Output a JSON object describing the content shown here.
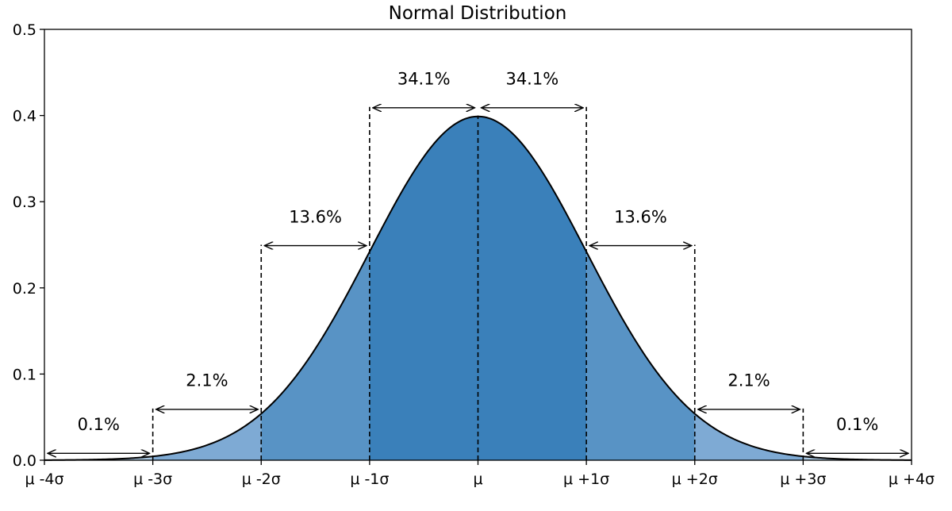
{
  "chart_data": {
    "type": "area",
    "title": "Normal Distribution",
    "xlabel": "",
    "ylabel": "",
    "xlim": [
      -4,
      4
    ],
    "ylim": [
      0,
      0.5
    ],
    "grid": false,
    "y_ticks": [
      {
        "value": 0.0,
        "label": "0.0"
      },
      {
        "value": 0.1,
        "label": "0.1"
      },
      {
        "value": 0.2,
        "label": "0.2"
      },
      {
        "value": 0.3,
        "label": "0.3"
      },
      {
        "value": 0.4,
        "label": "0.4"
      },
      {
        "value": 0.5,
        "label": "0.5"
      }
    ],
    "x_ticks": [
      {
        "value": -4,
        "label": "μ -4σ"
      },
      {
        "value": -3,
        "label": "μ -3σ"
      },
      {
        "value": -2,
        "label": "μ -2σ"
      },
      {
        "value": -1,
        "label": "μ -1σ"
      },
      {
        "value": 0,
        "label": "μ"
      },
      {
        "value": 1,
        "label": "μ +1σ"
      },
      {
        "value": 2,
        "label": "μ +2σ"
      },
      {
        "value": 3,
        "label": "μ +3σ"
      },
      {
        "value": 4,
        "label": "μ +4σ"
      }
    ],
    "curve": {
      "function": "standard normal pdf",
      "mean": 0,
      "sd": 1,
      "stroke_color": "#000000"
    },
    "bands": [
      {
        "from": -4,
        "to": -3,
        "label": "0.1%",
        "color": "#aac8e2"
      },
      {
        "from": -3,
        "to": -2,
        "label": "2.1%",
        "color": "#7eaad4"
      },
      {
        "from": -2,
        "to": -1,
        "label": "13.6%",
        "color": "#5893c5"
      },
      {
        "from": -1,
        "to": 0,
        "label": "34.1%",
        "color": "#3a80ba"
      },
      {
        "from": 0,
        "to": 1,
        "label": "34.1%",
        "color": "#3a80ba"
      },
      {
        "from": 1,
        "to": 2,
        "label": "13.6%",
        "color": "#5893c5"
      },
      {
        "from": 2,
        "to": 3,
        "label": "2.1%",
        "color": "#7eaad4"
      },
      {
        "from": 3,
        "to": 4,
        "label": "0.1%",
        "color": "#aac8e2"
      }
    ],
    "dashed_lines": [
      {
        "x": -3,
        "y_top": 0.06
      },
      {
        "x": -2,
        "y_top": 0.25
      },
      {
        "x": -1,
        "y_top": 0.41
      },
      {
        "x": 0,
        "y_top": 0.4
      },
      {
        "x": 1,
        "y_top": 0.41
      },
      {
        "x": 2,
        "y_top": 0.25
      },
      {
        "x": 3,
        "y_top": 0.06
      }
    ],
    "annotations": [
      {
        "label": "0.1%",
        "x_from": -4,
        "x_to": -3,
        "arrow_y": 0.008,
        "text_x": -3.5,
        "text_y": 0.035
      },
      {
        "label": "2.1%",
        "x_from": -3,
        "x_to": -2,
        "arrow_y": 0.059,
        "text_x": -2.5,
        "text_y": 0.086
      },
      {
        "label": "13.6%",
        "x_from": -2,
        "x_to": -1,
        "arrow_y": 0.249,
        "text_x": -1.5,
        "text_y": 0.276
      },
      {
        "label": "34.1%",
        "x_from": -1,
        "x_to": 0,
        "arrow_y": 0.409,
        "text_x": -0.5,
        "text_y": 0.436
      },
      {
        "label": "34.1%",
        "x_from": 0,
        "x_to": 1,
        "arrow_y": 0.409,
        "text_x": 0.5,
        "text_y": 0.436
      },
      {
        "label": "13.6%",
        "x_from": 1,
        "x_to": 2,
        "arrow_y": 0.249,
        "text_x": 1.5,
        "text_y": 0.276
      },
      {
        "label": "2.1%",
        "x_from": 2,
        "x_to": 3,
        "arrow_y": 0.059,
        "text_x": 2.5,
        "text_y": 0.086
      },
      {
        "label": "0.1%",
        "x_from": 3,
        "x_to": 4,
        "arrow_y": 0.008,
        "text_x": 3.5,
        "text_y": 0.035
      }
    ]
  }
}
